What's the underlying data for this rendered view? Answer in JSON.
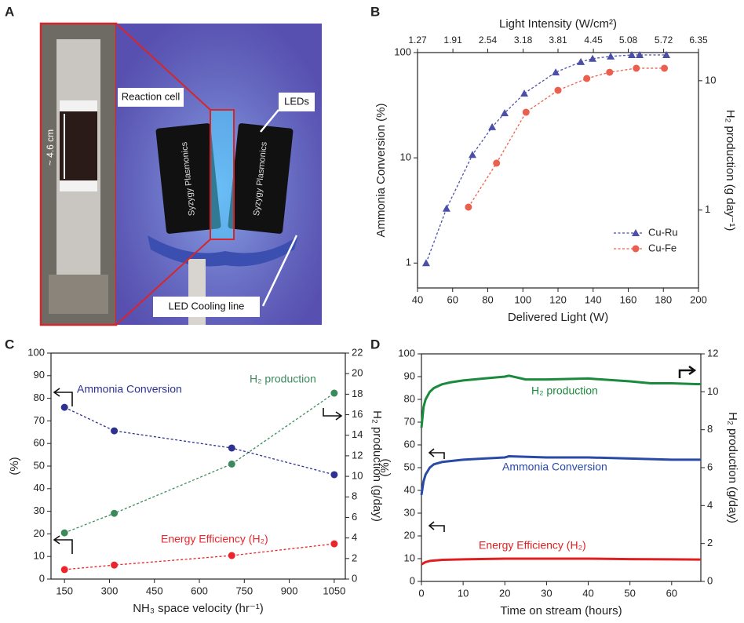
{
  "panels": [
    "A",
    "B",
    "C",
    "D"
  ],
  "photo": {
    "labels": [
      "Reaction cell",
      "LEDs",
      "LED Cooling line",
      "~ 4.6 cm"
    ],
    "brand_labels": [
      "Syzygy Plasmonics",
      "Syzygy Plasmonics"
    ]
  },
  "chart_data": [
    {
      "type": "line",
      "xlabel": "Delivered Light (W)",
      "ylabel": "Ammonia Conversion (%)",
      "y2label": "H₂ production (g day⁻¹)",
      "x2label": "Light Intensity (W/cm²)",
      "xlim": [
        40,
        200
      ],
      "xticks": [
        40,
        60,
        80,
        100,
        120,
        140,
        160,
        180,
        200
      ],
      "x2lim": [
        1.27,
        6.35
      ],
      "x2ticks": [
        1.27,
        1.91,
        2.54,
        3.18,
        3.81,
        4.45,
        5.08,
        5.72,
        6.35
      ],
      "ylim": [
        0.58,
        100
      ],
      "yticks": [
        1,
        10,
        100
      ],
      "ylog": true,
      "y2lim": [
        0.25,
        16.5
      ],
      "y2ticks": [
        1,
        10
      ],
      "y2log": true,
      "legend": "lower right",
      "series": [
        {
          "name": "Cu-Ru",
          "color": "#4b4fa6",
          "marker": "triangle",
          "line_style": "dashed",
          "x": [
            44.9,
            56.5,
            71.3,
            82.5,
            89.6,
            100.8,
            118.7,
            133,
            139.7,
            150,
            162,
            166.5,
            181.7
          ],
          "values": [
            1.0,
            3.3,
            10.7,
            19.6,
            26.6,
            40.9,
            65,
            81.5,
            87.6,
            92,
            95,
            95,
            95
          ]
        },
        {
          "name": "Cu-Fe",
          "color": "#ea5f4d",
          "marker": "circle",
          "line_style": "dashed",
          "x": [
            69,
            85,
            101.8,
            120,
            136.4,
            149.4,
            164.6,
            180.6
          ],
          "values": [
            3.4,
            8.9,
            27.1,
            43.8,
            56.7,
            65,
            71,
            71
          ]
        }
      ]
    },
    {
      "type": "line",
      "xlabel": "NH₃ space velocity (hr⁻¹)",
      "ylabel": "(%)",
      "y2label": "H₂ production (g/day)",
      "xlim": [
        105,
        1087
      ],
      "xticks": [
        150,
        300,
        450,
        600,
        750,
        900,
        1050
      ],
      "ylim": [
        0,
        100
      ],
      "yticks": [
        0,
        10,
        20,
        30,
        40,
        50,
        60,
        70,
        80,
        90,
        100
      ],
      "y2lim": [
        0,
        22
      ],
      "y2ticks": [
        0,
        2,
        4,
        6,
        8,
        10,
        12,
        14,
        16,
        18,
        20,
        22
      ],
      "series": [
        {
          "name": "Ammonia Conversion",
          "color": "#2e3192",
          "marker": "circle",
          "line_style": "dashed",
          "x": [
            150,
            316,
            708,
            1050
          ],
          "values": [
            76,
            65.6,
            58,
            46.2
          ]
        },
        {
          "name": "H₂ production",
          "color": "#3c8a5c",
          "marker": "circle",
          "line_style": "dashed",
          "axis": "y2",
          "x": [
            150,
            316,
            708,
            1050
          ],
          "values": [
            4.5,
            6.4,
            11.2,
            18.1
          ]
        },
        {
          "name": "Energy Efficiency (H₂)",
          "color": "#e8262c",
          "marker": "circle",
          "line_style": "dashed",
          "x": [
            150,
            316,
            708,
            1050
          ],
          "values": [
            4.2,
            6.2,
            10.4,
            15.6
          ]
        }
      ]
    },
    {
      "type": "line",
      "xlabel": "Time on stream (hours)",
      "ylabel": "(%)",
      "y2label": "H₂ production (g/day)",
      "xlim": [
        0,
        67
      ],
      "xticks": [
        0,
        10,
        20,
        30,
        40,
        50,
        60
      ],
      "ylim": [
        0,
        100
      ],
      "yticks": [
        0,
        10,
        20,
        30,
        40,
        50,
        60,
        70,
        80,
        90,
        100
      ],
      "y2lim": [
        0,
        12
      ],
      "y2ticks": [
        0,
        2,
        4,
        6,
        8,
        10,
        12
      ],
      "series": [
        {
          "name": "H₂ production",
          "color": "#1a8a3c",
          "line_style": "solid",
          "axis": "y2",
          "x": [
            0,
            0.5,
            1,
            2,
            3,
            5,
            7,
            10,
            15,
            20,
            21,
            25,
            30,
            40,
            50,
            55,
            60,
            67
          ],
          "values": [
            8.1,
            9.2,
            9.6,
            10.0,
            10.2,
            10.4,
            10.5,
            10.6,
            10.7,
            10.8,
            10.85,
            10.65,
            10.65,
            10.7,
            10.55,
            10.45,
            10.45,
            10.4
          ]
        },
        {
          "name": "Ammonia Conversion",
          "color": "#2a4aa8",
          "line_style": "solid",
          "x": [
            0,
            0.5,
            1,
            2,
            3,
            5,
            10,
            15,
            20,
            21,
            30,
            40,
            50,
            60,
            67
          ],
          "values": [
            38,
            44,
            47,
            50,
            51.5,
            52.5,
            53.5,
            54,
            54.5,
            55,
            54.5,
            54.5,
            54,
            53.5,
            53.5
          ]
        },
        {
          "name": "Energy Efficiency (H₂)",
          "color": "#e02020",
          "line_style": "solid",
          "x": [
            0,
            1,
            2,
            5,
            10,
            20,
            30,
            40,
            50,
            60,
            67
          ],
          "values": [
            7.5,
            8.5,
            9,
            9.5,
            9.7,
            10,
            10,
            10,
            9.8,
            9.7,
            9.6
          ]
        }
      ]
    }
  ]
}
